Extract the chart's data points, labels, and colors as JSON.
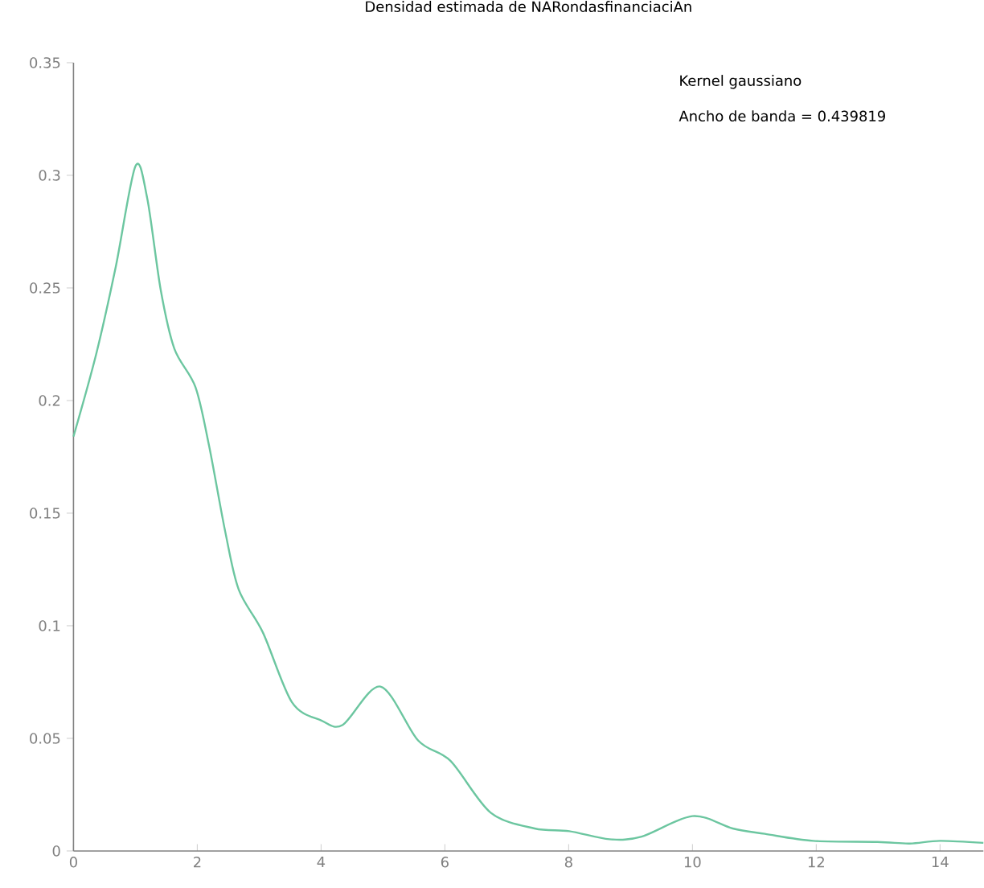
{
  "chart_data": {
    "type": "line",
    "title": "Densidad estimada de NARondasfinanciaciAn",
    "annotations": [
      "Kernel gaussiano",
      "Ancho de banda = 0.439819"
    ],
    "x": [
      0,
      0.37,
      0.68,
      1.0,
      1.19,
      1.41,
      1.63,
      1.97,
      2.19,
      2.45,
      2.67,
      3.06,
      3.53,
      4.0,
      4.35,
      4.96,
      5.57,
      6.09,
      6.74,
      7.45,
      8.01,
      8.66,
      9.18,
      10.0,
      10.65,
      11.17,
      11.95,
      12.99,
      13.51,
      14.0,
      14.7
    ],
    "series": [
      {
        "color": "#6cc6a0",
        "values": [
          0.184,
          0.221,
          0.259,
          0.304,
          0.29,
          0.249,
          0.223,
          0.206,
          0.18,
          0.142,
          0.116,
          0.097,
          0.066,
          0.058,
          0.056,
          0.073,
          0.049,
          0.04,
          0.017,
          0.01,
          0.0088,
          0.0052,
          0.0064,
          0.0155,
          0.01,
          0.0076,
          0.0045,
          0.004,
          0.0033,
          0.0045,
          0.0036
        ]
      }
    ],
    "xlim": [
      0,
      14.7
    ],
    "xticks": [
      0,
      2,
      4,
      6,
      8,
      10,
      12,
      14
    ],
    "ylim": [
      0,
      0.35
    ],
    "yticks": [
      0,
      0.05,
      0.1,
      0.15,
      0.2,
      0.25,
      0.3,
      0.35
    ],
    "grid": false,
    "marker": "none",
    "line_style": "solid"
  }
}
